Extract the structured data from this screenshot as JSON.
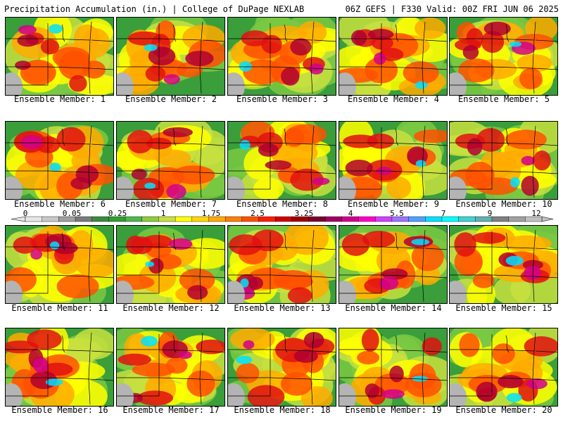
{
  "header": {
    "left": "Precipitation Accumulation (in.) | College of DuPage NEXLAB",
    "right": "06Z GEFS | F330 Valid: 00Z FRI JUN 06 2025"
  },
  "colorbar": {
    "labels": [
      "0",
      "0.05",
      "0.25",
      "1",
      "1.75",
      "2.5",
      "3.25",
      "4",
      "5.5",
      "7",
      "9",
      "12"
    ],
    "colors": [
      "#e6e6e6",
      "#c8c8c8",
      "#a0a0a0",
      "#7a7a7a",
      "#3c8a3c",
      "#2ea02e",
      "#4cb84c",
      "#8ccc3c",
      "#c8e040",
      "#ffff00",
      "#ffd700",
      "#ffaa00",
      "#ff8000",
      "#ff5000",
      "#ff1a00",
      "#d20000",
      "#a00000",
      "#7a0030",
      "#a00060",
      "#d2008c",
      "#ff00c8",
      "#d040ff",
      "#a070ff",
      "#50a0ff",
      "#00e0ff",
      "#00ffff",
      "#40d0d0",
      "#60b0b0",
      "#808080",
      "#a0a0a0",
      "#c0c0c0"
    ]
  },
  "members": [
    {
      "label": "Ensemble Member: 1"
    },
    {
      "label": "Ensemble Member: 2"
    },
    {
      "label": "Ensemble Member: 3"
    },
    {
      "label": "Ensemble Member: 4"
    },
    {
      "label": "Ensemble Member: 5"
    },
    {
      "label": "Ensemble Member: 6"
    },
    {
      "label": "Ensemble Member: 7"
    },
    {
      "label": "Ensemble Member: 8"
    },
    {
      "label": "Ensemble Member: 9"
    },
    {
      "label": "Ensemble Member: 10"
    },
    {
      "label": "Ensemble Member: 11"
    },
    {
      "label": "Ensemble Member: 12"
    },
    {
      "label": "Ensemble Member: 13"
    },
    {
      "label": "Ensemble Member: 14"
    },
    {
      "label": "Ensemble Member: 15"
    },
    {
      "label": "Ensemble Member: 16"
    },
    {
      "label": "Ensemble Member: 17"
    },
    {
      "label": "Ensemble Member: 18"
    },
    {
      "label": "Ensemble Member: 19"
    },
    {
      "label": "Ensemble Member: 20"
    }
  ]
}
